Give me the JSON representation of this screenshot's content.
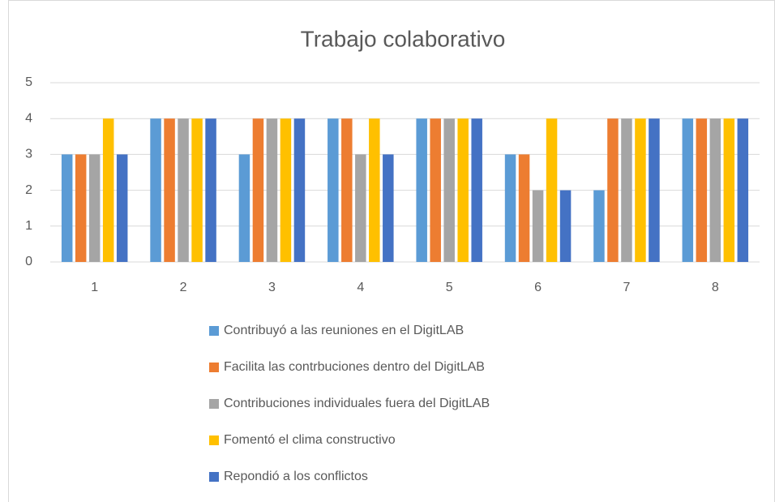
{
  "chart_data": {
    "type": "bar",
    "title": "Trabajo colaborativo",
    "categories": [
      "1",
      "2",
      "3",
      "4",
      "5",
      "6",
      "7",
      "8"
    ],
    "series": [
      {
        "name": "Contribuyó a las reuniones en el DigitLAB",
        "color": "#5b9bd5",
        "values": [
          3,
          4,
          3,
          4,
          4,
          3,
          2,
          4
        ]
      },
      {
        "name": "Facilita las contrbuciones dentro del DigitLAB",
        "color": "#ed7d31",
        "values": [
          3,
          4,
          4,
          4,
          4,
          3,
          4,
          4
        ]
      },
      {
        "name": "Contribuciones individuales fuera del DigitLAB",
        "color": "#a5a5a5",
        "values": [
          3,
          4,
          4,
          3,
          4,
          2,
          4,
          4
        ]
      },
      {
        "name": "Fomentó el clima constructivo",
        "color": "#ffc000",
        "values": [
          4,
          4,
          4,
          4,
          4,
          4,
          4,
          4
        ]
      },
      {
        "name": "Repondió a los conflictos",
        "color": "#4472c4",
        "values": [
          3,
          4,
          4,
          3,
          4,
          2,
          4,
          4
        ]
      }
    ],
    "ylim": [
      0,
      5
    ],
    "yticks": [
      0,
      1,
      2,
      3,
      4,
      5
    ],
    "grid": true,
    "legend": "bottom"
  }
}
